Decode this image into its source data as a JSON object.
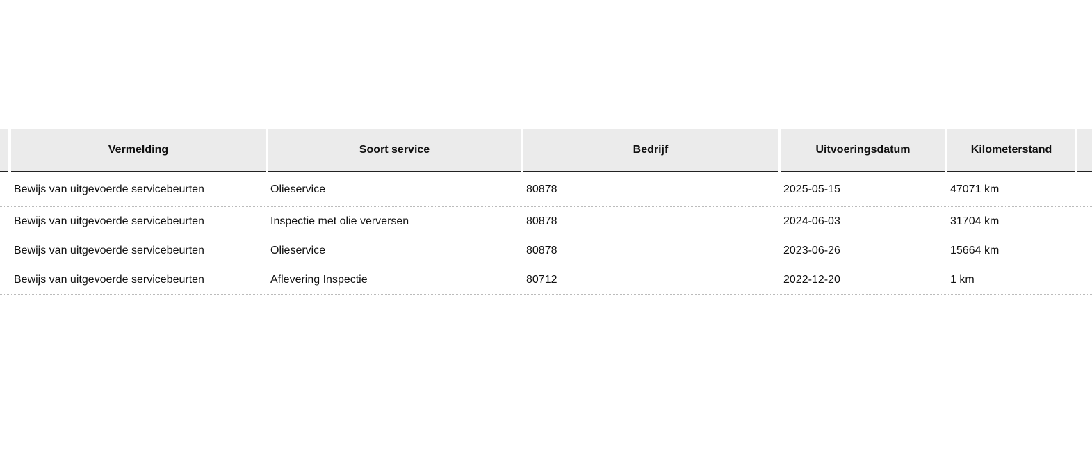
{
  "table": {
    "columns": [
      "",
      "Vermelding",
      "Soort service",
      "Bedrijf",
      "Uitvoeringsdatum",
      "Kilometerstand",
      ""
    ],
    "rows": [
      [
        "Bewijs van uitgevoerde servicebeurten",
        "Olieservice",
        "80878",
        "2025-05-15",
        "47071 km"
      ],
      [
        "Bewijs van uitgevoerde servicebeurten",
        "Inspectie met olie verversen",
        "80878",
        "2024-06-03",
        "31704 km"
      ],
      [
        "Bewijs van uitgevoerde servicebeurten",
        "Olieservice",
        "80878",
        "2023-06-26",
        "15664 km"
      ],
      [
        "Bewijs van uitgevoerde servicebeurten",
        "Aflevering Inspectie",
        "80712",
        "2022-12-20",
        "1 km"
      ]
    ]
  }
}
